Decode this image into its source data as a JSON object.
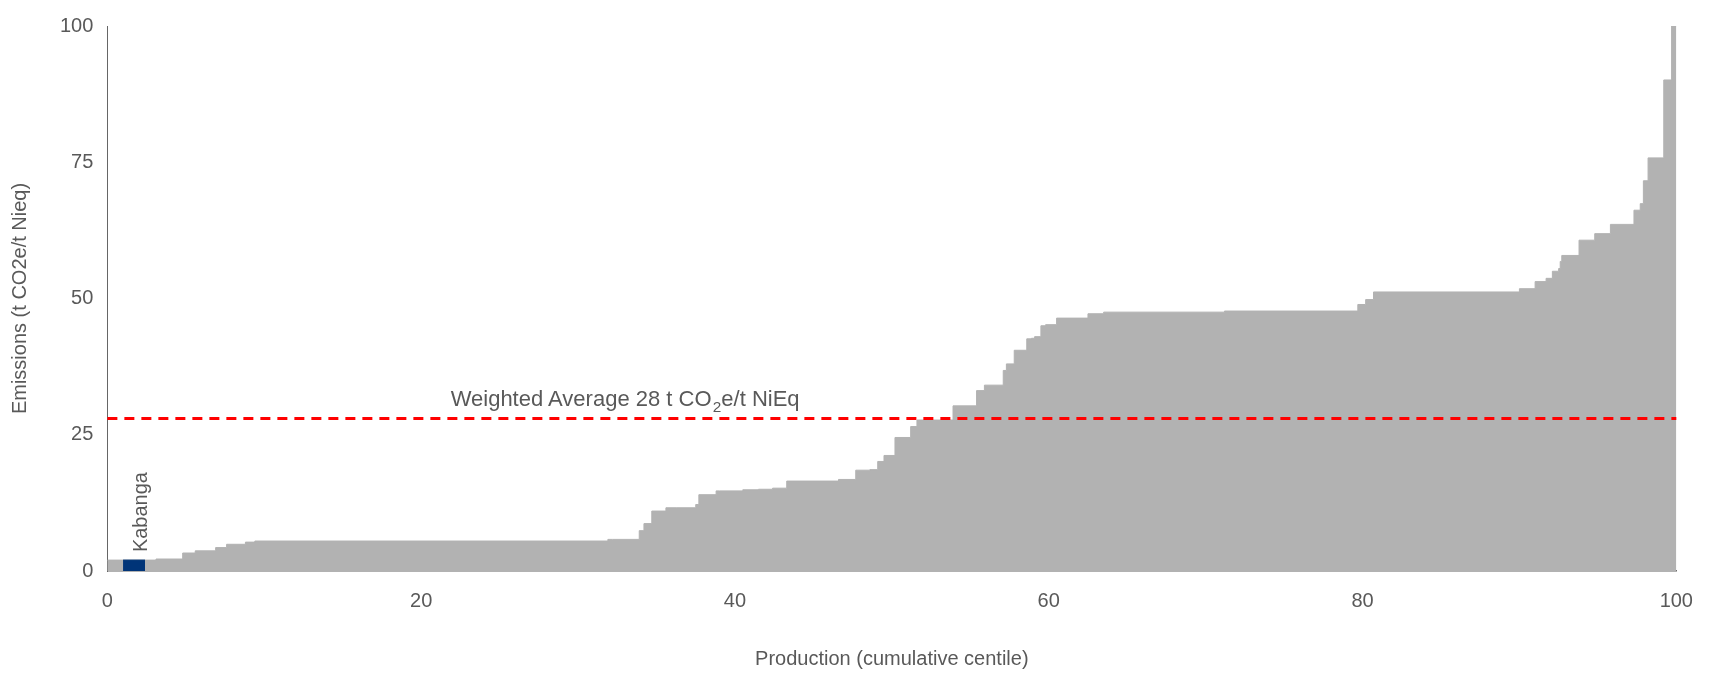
{
  "chart_data": {
    "type": "area",
    "xlabel": "Production (cumulative centile)",
    "ylabel": "Emissions (t CO2e/t Nieq)",
    "xlim": [
      0,
      100
    ],
    "xticks": [
      0,
      20,
      40,
      60,
      80,
      100
    ],
    "ylim": [
      0,
      100
    ],
    "yticks": [
      0,
      25,
      50,
      75,
      100
    ],
    "grid": false,
    "legend": false,
    "series": [
      {
        "color": "#b2b2b2",
        "x": [
          0,
          1.0,
          1.0,
          2.4,
          2.4,
          3.1,
          3.1,
          4.8,
          4.8,
          5.6,
          5.6,
          6.9,
          6.9,
          7.6,
          7.6,
          8.8,
          8.8,
          9.4,
          9.4,
          31.9,
          31.9,
          32.2,
          32.2,
          33.9,
          33.9,
          34.2,
          34.2,
          34.7,
          34.7,
          35.6,
          35.6,
          36.3,
          36.3,
          37.5,
          37.5,
          37.7,
          37.7,
          38.8,
          38.8,
          39.0,
          39.0,
          40.5,
          40.5,
          41.5,
          41.5,
          42.4,
          42.4,
          43.3,
          43.3,
          46.6,
          46.6,
          47.7,
          47.7,
          48.6,
          48.6,
          49.1,
          49.1,
          49.5,
          49.5,
          50.2,
          50.2,
          51.2,
          51.2,
          51.6,
          51.6,
          53.9,
          53.9,
          55.4,
          55.4,
          55.9,
          55.9,
          57.1,
          57.1,
          57.3,
          57.3,
          57.8,
          57.8,
          58.6,
          58.6,
          58.9,
          58.9,
          59.1,
          59.1,
          59.5,
          59.5,
          59.8,
          59.8,
          60.5,
          60.5,
          62.5,
          62.5,
          63.5,
          63.5,
          71.2,
          71.2,
          79.7,
          79.7,
          80.2,
          80.2,
          80.7,
          80.7,
          90.0,
          90.0,
          91.0,
          91.0,
          91.7,
          91.7,
          92.1,
          92.1,
          92.5,
          92.5,
          92.6,
          92.6,
          92.7,
          92.7,
          93.8,
          93.8,
          94.8,
          94.8,
          95.8,
          95.8,
          97.3,
          97.3,
          97.7,
          97.7,
          97.9,
          97.9,
          98.2,
          98.2,
          99.2,
          99.2,
          99.7,
          99.7,
          100
        ],
        "values": [
          2.0,
          2.0,
          2.0,
          2.0,
          2.0,
          2.0,
          2.2,
          2.2,
          3.3,
          3.3,
          3.7,
          3.7,
          4.3,
          4.3,
          4.9,
          4.9,
          5.3,
          5.3,
          5.5,
          5.5,
          5.8,
          5.8,
          5.8,
          5.8,
          7.4,
          7.4,
          8.7,
          8.7,
          11.0,
          11.0,
          11.6,
          11.6,
          11.6,
          11.6,
          12.2,
          12.2,
          14.0,
          14.0,
          14.7,
          14.7,
          14.7,
          14.7,
          14.9,
          14.9,
          15.0,
          15.0,
          15.2,
          15.2,
          16.5,
          16.5,
          16.8,
          16.8,
          18.5,
          18.5,
          18.6,
          18.6,
          20.1,
          20.1,
          21.2,
          21.2,
          24.5,
          24.5,
          26.5,
          26.5,
          27.7,
          27.7,
          30.3,
          30.3,
          33.1,
          33.1,
          34.1,
          34.1,
          36.8,
          36.8,
          38.0,
          38.0,
          40.5,
          40.5,
          42.6,
          42.6,
          42.7,
          42.7,
          43.0,
          43.0,
          45.0,
          45.0,
          45.2,
          45.2,
          46.4,
          46.4,
          47.2,
          47.2,
          47.5,
          47.5,
          47.7,
          47.7,
          48.9,
          48.9,
          49.8,
          49.8,
          51.2,
          51.2,
          51.8,
          51.8,
          53.1,
          53.1,
          53.7,
          53.7,
          55.0,
          55.0,
          55.5,
          55.5,
          56.8,
          56.8,
          57.9,
          57.9,
          60.7,
          60.7,
          61.9,
          61.9,
          63.6,
          63.6,
          66.2,
          66.2,
          67.4,
          67.4,
          71.6,
          71.6,
          75.8,
          75.8,
          90.1,
          90.1,
          100,
          100
        ]
      },
      {
        "name": "Kabanga",
        "color": "#003478",
        "x": [
          1.0,
          2.4
        ],
        "values": [
          2.0,
          2.0
        ]
      }
    ],
    "ref_lines": [
      {
        "axis": "y",
        "value": 28,
        "label": "Weighted Average 28 t CO$_{2}$e/t NiEq",
        "color": "#ff0000",
        "line_style": "dashed"
      }
    ]
  }
}
